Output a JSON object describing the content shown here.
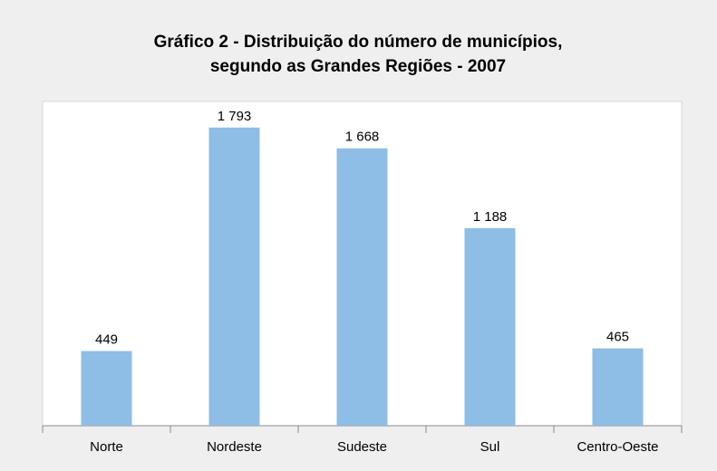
{
  "chart_data": {
    "type": "bar",
    "title": [
      "Gráfico 2 - Distribuição do número de municípios,",
      "segundo as Grandes Regiões - 2007"
    ],
    "categories": [
      "Norte",
      "Nordeste",
      "Sudeste",
      "Sul",
      "Centro-Oeste"
    ],
    "values": [
      449,
      1793,
      1668,
      1188,
      465
    ],
    "value_labels": [
      "449",
      "1 793",
      "1 668",
      "1 188",
      "465"
    ],
    "color": "#8ebde6",
    "ylim": [
      0,
      1950
    ]
  }
}
